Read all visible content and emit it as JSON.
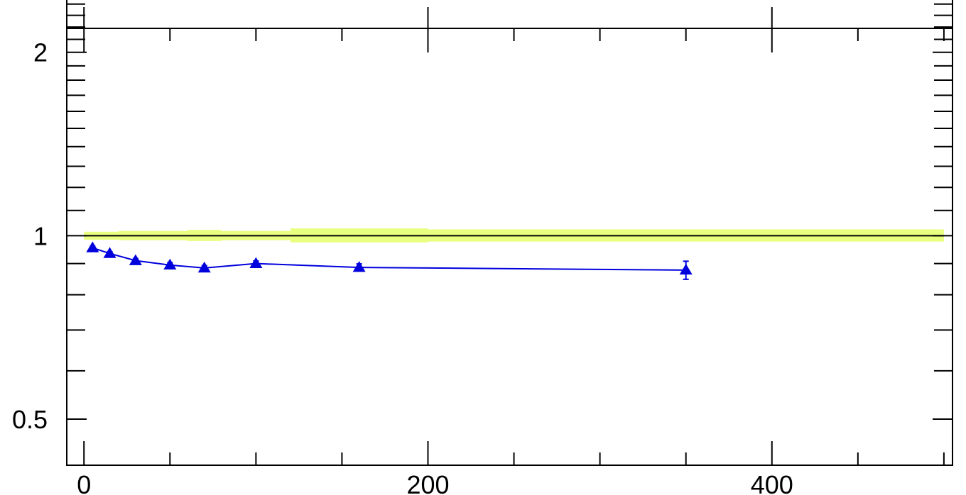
{
  "chart_data": {
    "type": "line",
    "title": "",
    "xlabel": "",
    "ylabel": "",
    "y_scale": "log",
    "xlim": [
      -10,
      505
    ],
    "ylim": [
      0.42,
      2.45
    ],
    "x_ticks": [
      0,
      200,
      400
    ],
    "x_tick_labels": [
      "0",
      "200",
      "400"
    ],
    "y_ticks": [
      0.5,
      1,
      2
    ],
    "y_tick_labels": [
      "0.5",
      "1",
      "2"
    ],
    "grid": false,
    "legend": "none",
    "reference_line": {
      "y": 1,
      "color": "#000000"
    },
    "uncertainty_band": {
      "color": "#e8ff80",
      "segments": [
        {
          "x": [
            0,
            20
          ],
          "low": 0.985,
          "high": 1.015
        },
        {
          "x": [
            20,
            60
          ],
          "low": 0.983,
          "high": 1.018
        },
        {
          "x": [
            60,
            80
          ],
          "low": 0.98,
          "high": 1.022
        },
        {
          "x": [
            80,
            120
          ],
          "low": 0.983,
          "high": 1.018
        },
        {
          "x": [
            120,
            200
          ],
          "low": 0.975,
          "high": 1.028
        },
        {
          "x": [
            200,
            500
          ],
          "low": 0.978,
          "high": 1.024
        }
      ]
    },
    "series": [
      {
        "color": "#0000dd",
        "marker": "triangle",
        "x": [
          5,
          15,
          30,
          50,
          70,
          100,
          160,
          350
        ],
        "y": [
          0.955,
          0.935,
          0.91,
          0.895,
          0.885,
          0.9,
          0.887,
          0.878
        ],
        "err": [
          0.006,
          0.006,
          0.007,
          0.008,
          0.008,
          0.009,
          0.012,
          0.03
        ]
      }
    ]
  }
}
